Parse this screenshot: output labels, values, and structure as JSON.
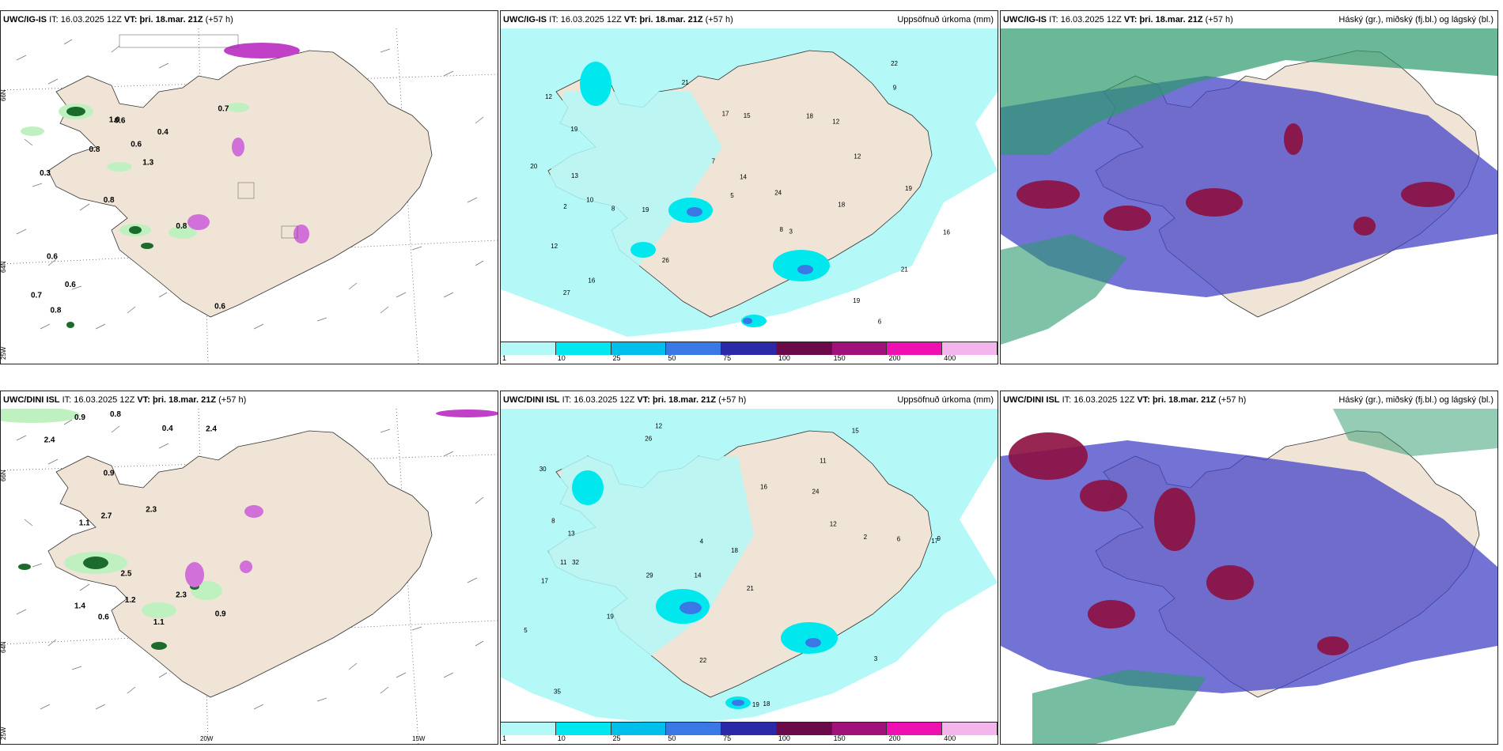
{
  "panels": [
    {
      "model": "UWC/IG-IS",
      "it_label": "IT:",
      "it": "16.03.2025 12Z",
      "vt_label": "VT:",
      "vt": "þri. 18.mar. 21Z",
      "lead": "(+57 h)",
      "right": ""
    },
    {
      "model": "UWC/IG-IS",
      "it_label": "IT:",
      "it": "16.03.2025 12Z",
      "vt_label": "VT:",
      "vt": "þri. 18.mar. 21Z",
      "lead": "(+57 h)",
      "right": "Uppsöfnuð úrkoma (mm)"
    },
    {
      "model": "UWC/IG-IS",
      "it_label": "IT:",
      "it": "16.03.2025 12Z",
      "vt_label": "VT:",
      "vt": "þri. 18.mar. 21Z",
      "lead": "(+57 h)",
      "right": "Háský (gr.), miðský (fj.bl.) og lágský (bl.)"
    },
    {
      "model": "UWC/DINI ISL",
      "it_label": "IT:",
      "it": "16.03.2025 12Z",
      "vt_label": "VT:",
      "vt": "þri. 18.mar. 21Z",
      "lead": "(+57 h)",
      "right": ""
    },
    {
      "model": "UWC/DINI ISL",
      "it_label": "IT:",
      "it": "16.03.2025 12Z",
      "vt_label": "VT:",
      "vt": "þri. 18.mar. 21Z",
      "lead": "(+57 h)",
      "right": "Uppsöfnuð úrkoma (mm)"
    },
    {
      "model": "UWC/DINI ISL",
      "it_label": "IT:",
      "it": "16.03.2025 12Z",
      "vt_label": "VT:",
      "vt": "þri. 18.mar. 21Z",
      "lead": "(+57 h)",
      "right": "Háský (gr.), miðský (fj.bl.) og lágský (bl.)"
    }
  ],
  "axes": {
    "lat66": "66N",
    "lat64": "64N",
    "lon25": "25W",
    "lon20": "20W",
    "lon15": "15W"
  },
  "legend": {
    "ticks": [
      "1",
      "10",
      "25",
      "50",
      "75",
      "100",
      "150",
      "200",
      "400"
    ],
    "colors": [
      "#b4f8f8",
      "#00e8ee",
      "#00bfea",
      "#3a78e6",
      "#2a2aa8",
      "#6a0a4a",
      "#a0127a",
      "#ee10b0",
      "#f4b4ec"
    ]
  },
  "colors": {
    "land": "#f0e4d6",
    "sea": "#ffffff",
    "precip_light": "#b4f8f8",
    "precip_mid": "#00e8ee",
    "high_cloud": "#2c9a6e",
    "mid_cloud": "#8c1040",
    "low_cloud": "#4444c8"
  },
  "snow_labels_top": [
    "0.6",
    "0.3",
    "0.7",
    "0.8",
    "0.4",
    "0.8",
    "1.0",
    "0.6",
    "0.6",
    "0.8",
    "0.7",
    "0.6",
    "0.6",
    "1.3",
    "0.8"
  ],
  "snow_labels_bottom": [
    "0.6",
    "1.1",
    "1.4",
    "2.3",
    "0.9",
    "2.4",
    "1.1",
    "0.9",
    "0.8",
    "0.9",
    "2.4",
    "1.2",
    "2.7",
    "2.5",
    "0.4",
    "2.3"
  ],
  "precip_labels_top": [
    "6",
    "10",
    "8",
    "12",
    "21",
    "19",
    "16",
    "19",
    "12",
    "17",
    "18",
    "19",
    "26",
    "21",
    "24",
    "12",
    "18",
    "14",
    "20",
    "27",
    "22",
    "15",
    "12",
    "16",
    "19",
    "13",
    "8",
    "5",
    "7",
    "9",
    "3",
    "2"
  ],
  "precip_labels_bottom": [
    "12",
    "11",
    "17",
    "14",
    "21",
    "32",
    "30",
    "24",
    "17",
    "16",
    "18",
    "35",
    "26",
    "29",
    "19",
    "18",
    "22",
    "15",
    "12",
    "19",
    "13",
    "11",
    "9",
    "6",
    "5",
    "8",
    "4",
    "2",
    "3"
  ]
}
